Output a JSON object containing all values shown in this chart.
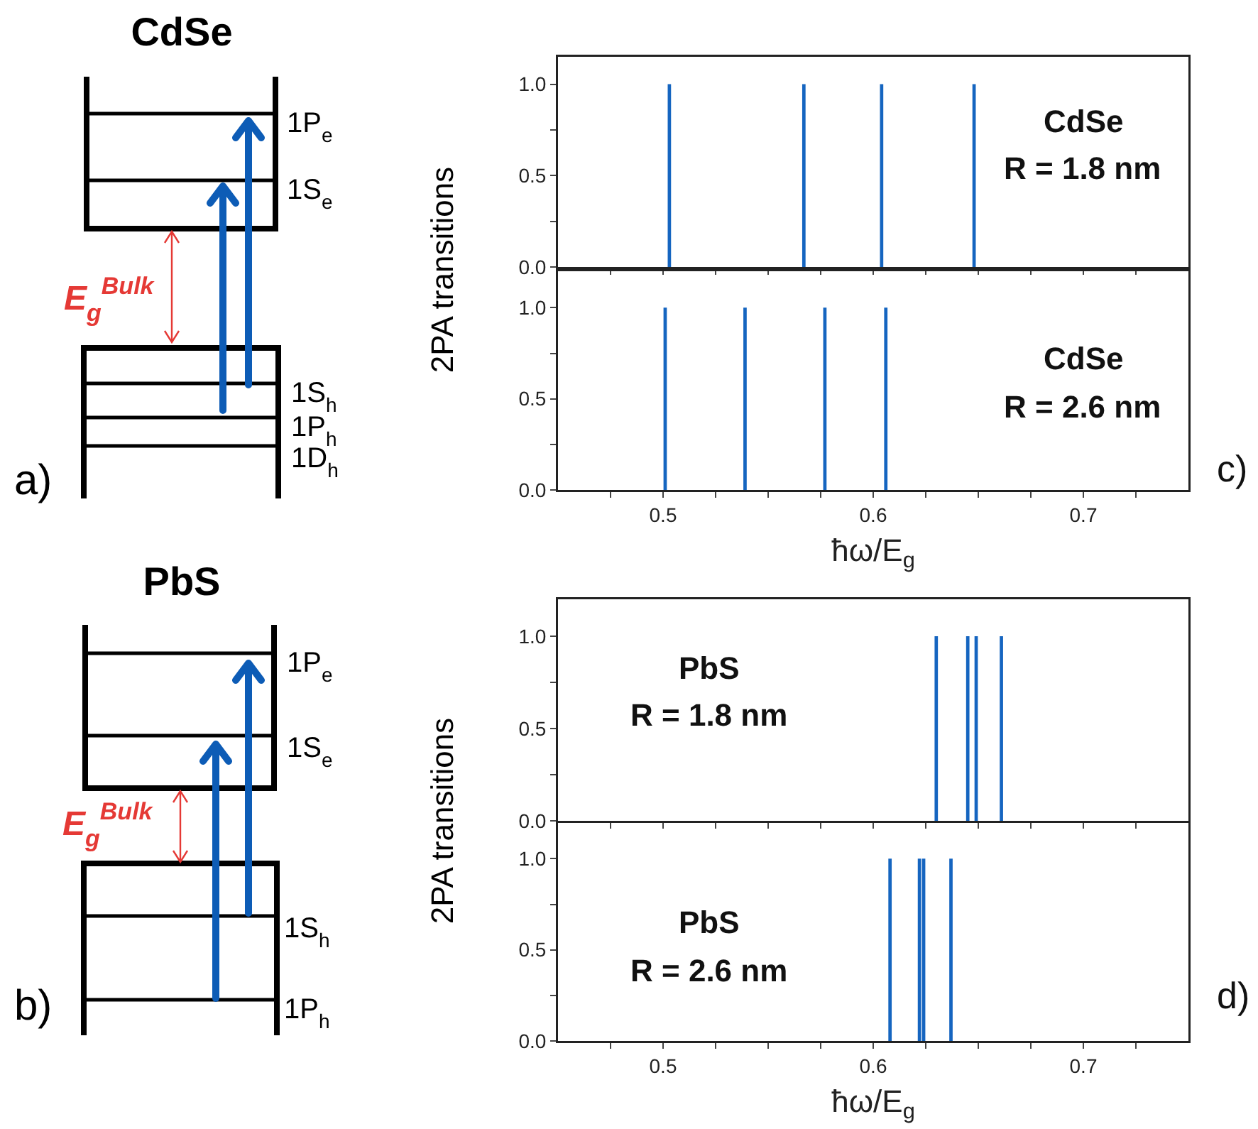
{
  "chart_data": [
    {
      "type": "other",
      "title": "CdSe",
      "annotations": [
        "1P$_{e}$",
        "1S$_{e}$",
        "E$_{g}$$^{Bulk}$",
        "1S$_{h}$",
        "1P$_{h}$",
        "1D$_{h}$",
        "a)"
      ]
    },
    {
      "type": "bar",
      "ylabel": "2PA transitions",
      "x": [
        0.503,
        0.567,
        0.604,
        0.648
      ],
      "values": [
        1,
        1,
        1,
        1
      ],
      "color": "#1565c0",
      "xlim": [
        0.45,
        0.75
      ],
      "ylim": [
        0,
        1.15
      ],
      "xticks": [
        {
          "value": 0.475,
          "label": null
        },
        {
          "value": 0.5,
          "label": null
        },
        {
          "value": 0.525,
          "label": null
        },
        {
          "value": 0.55,
          "label": null
        },
        {
          "value": 0.575,
          "label": null
        },
        {
          "value": 0.6,
          "label": null
        },
        {
          "value": 0.625,
          "label": null
        },
        {
          "value": 0.65,
          "label": null
        },
        {
          "value": 0.675,
          "label": null
        },
        {
          "value": 0.7,
          "label": null
        },
        {
          "value": 0.725,
          "label": null
        }
      ],
      "yticks": [
        {
          "value": 0,
          "label": "0.0"
        },
        {
          "value": 0.25,
          "label": null
        },
        {
          "value": 0.5,
          "label": "0.5"
        },
        {
          "value": 0.75,
          "label": null
        },
        {
          "value": 1,
          "label": "1.0"
        }
      ],
      "tick_labels": "y",
      "annotations": [
        "CdSe",
        "R = 1.8 nm"
      ]
    },
    {
      "type": "bar",
      "xlabel": "ħω/E$_{g}$",
      "x": [
        0.501,
        0.539,
        0.577,
        0.606
      ],
      "values": [
        1,
        1,
        1,
        1
      ],
      "color": "#1565c0",
      "xlim": [
        0.45,
        0.75
      ],
      "ylim": [
        0,
        1.2
      ],
      "xticks": [
        {
          "value": 0.475,
          "label": null
        },
        {
          "value": 0.5,
          "label": "0.5"
        },
        {
          "value": 0.525,
          "label": null
        },
        {
          "value": 0.55,
          "label": null
        },
        {
          "value": 0.575,
          "label": null
        },
        {
          "value": 0.6,
          "label": "0.6"
        },
        {
          "value": 0.625,
          "label": null
        },
        {
          "value": 0.65,
          "label": null
        },
        {
          "value": 0.675,
          "label": null
        },
        {
          "value": 0.7,
          "label": "0.7"
        },
        {
          "value": 0.725,
          "label": null
        }
      ],
      "yticks": [
        {
          "value": 0,
          "label": "0.0"
        },
        {
          "value": 0.25,
          "label": null
        },
        {
          "value": 0.5,
          "label": "0.5"
        },
        {
          "value": 0.75,
          "label": null
        },
        {
          "value": 1,
          "label": "1.0"
        }
      ],
      "annotations": [
        "CdSe",
        "R = 2.6 nm",
        "c)"
      ]
    },
    {
      "type": "other",
      "title": "PbS",
      "annotations": [
        "1P$_{e}$",
        "1S$_{e}$",
        "E$_{g}$$^{Bulk}$",
        "1S$_{h}$",
        "1P$_{h}$",
        "b)"
      ]
    },
    {
      "type": "bar",
      "ylabel": "2PA transitions",
      "x": [
        0.63,
        0.645,
        0.649,
        0.661
      ],
      "values": [
        1,
        1,
        1,
        1
      ],
      "color": "#1565c0",
      "xlim": [
        0.45,
        0.75
      ],
      "ylim": [
        0,
        1.2
      ],
      "xticks": [
        {
          "value": 0.475,
          "label": null
        },
        {
          "value": 0.5,
          "label": null
        },
        {
          "value": 0.525,
          "label": null
        },
        {
          "value": 0.55,
          "label": null
        },
        {
          "value": 0.575,
          "label": null
        },
        {
          "value": 0.6,
          "label": null
        },
        {
          "value": 0.625,
          "label": null
        },
        {
          "value": 0.65,
          "label": null
        },
        {
          "value": 0.675,
          "label": null
        },
        {
          "value": 0.7,
          "label": null
        },
        {
          "value": 0.725,
          "label": null
        }
      ],
      "yticks": [
        {
          "value": 0,
          "label": "0.0"
        },
        {
          "value": 0.25,
          "label": null
        },
        {
          "value": 0.5,
          "label": "0.5"
        },
        {
          "value": 0.75,
          "label": null
        },
        {
          "value": 1,
          "label": "1.0"
        }
      ],
      "tick_labels": "y",
      "annotations": [
        "PbS",
        "R = 1.8 nm"
      ]
    },
    {
      "type": "bar",
      "xlabel": "ħω/E$_{g}$",
      "x": [
        0.608,
        0.622,
        0.624,
        0.637
      ],
      "values": [
        1,
        1,
        1,
        1
      ],
      "color": "#1565c0",
      "xlim": [
        0.45,
        0.75
      ],
      "ylim": [
        0,
        1.2
      ],
      "xticks": [
        {
          "value": 0.475,
          "label": null
        },
        {
          "value": 0.5,
          "label": "0.5"
        },
        {
          "value": 0.525,
          "label": null
        },
        {
          "value": 0.55,
          "label": null
        },
        {
          "value": 0.575,
          "label": null
        },
        {
          "value": 0.6,
          "label": "0.6"
        },
        {
          "value": 0.625,
          "label": null
        },
        {
          "value": 0.65,
          "label": null
        },
        {
          "value": 0.675,
          "label": null
        },
        {
          "value": 0.7,
          "label": "0.7"
        },
        {
          "value": 0.725,
          "label": null
        }
      ],
      "yticks": [
        {
          "value": 0,
          "label": "0.0"
        },
        {
          "value": 0.25,
          "label": null
        },
        {
          "value": 0.5,
          "label": "0.5"
        },
        {
          "value": 0.75,
          "label": null
        },
        {
          "value": 1,
          "label": "1.0"
        }
      ],
      "annotations": [
        "PbS",
        "R = 2.6 nm",
        "d)"
      ]
    }
  ]
}
